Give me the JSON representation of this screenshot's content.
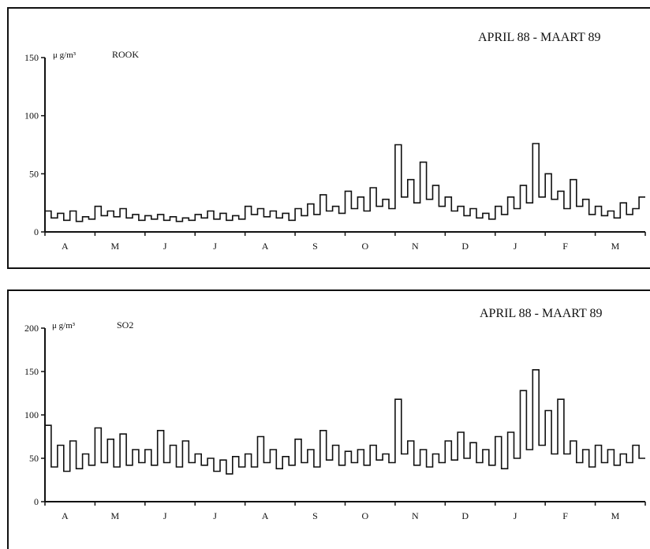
{
  "chart_data": [
    {
      "type": "line",
      "period_label": "APRIL 88 - MAART 89",
      "unit": "μ g/m³",
      "series_name": "ROOK",
      "yticks": [
        0,
        50,
        100,
        150
      ],
      "ylim": [
        0,
        150
      ],
      "months": [
        "A",
        "M",
        "J",
        "J",
        "A",
        "S",
        "O",
        "N",
        "D",
        "J",
        "F",
        "M"
      ],
      "points_per_month": 8,
      "values": [
        18,
        12,
        16,
        10,
        18,
        9,
        13,
        11,
        22,
        14,
        18,
        13,
        20,
        12,
        15,
        10,
        14,
        11,
        15,
        10,
        13,
        9,
        12,
        10,
        15,
        12,
        18,
        11,
        16,
        10,
        14,
        11,
        22,
        15,
        20,
        13,
        18,
        12,
        16,
        10,
        20,
        14,
        24,
        15,
        32,
        18,
        22,
        16,
        35,
        20,
        30,
        18,
        38,
        22,
        28,
        20,
        75,
        30,
        45,
        25,
        60,
        28,
        40,
        22,
        30,
        18,
        22,
        14,
        20,
        12,
        16,
        11,
        22,
        15,
        30,
        20,
        40,
        25,
        76,
        30,
        50,
        28,
        35,
        20,
        45,
        22,
        28,
        15,
        22,
        14,
        18,
        12,
        25,
        15,
        20,
        30
      ]
    },
    {
      "type": "line",
      "period_label": "APRIL 88 - MAART 89",
      "unit": "μ g/m³",
      "series_name": "SO2",
      "yticks": [
        0,
        50,
        100,
        150,
        200
      ],
      "ylim": [
        0,
        200
      ],
      "months": [
        "A",
        "M",
        "J",
        "J",
        "A",
        "S",
        "O",
        "N",
        "D",
        "J",
        "F",
        "M"
      ],
      "points_per_month": 8,
      "values": [
        88,
        40,
        65,
        35,
        70,
        38,
        55,
        42,
        85,
        45,
        72,
        40,
        78,
        42,
        60,
        45,
        60,
        42,
        82,
        45,
        65,
        40,
        70,
        45,
        55,
        42,
        50,
        35,
        48,
        32,
        52,
        40,
        55,
        40,
        75,
        45,
        60,
        38,
        52,
        42,
        72,
        45,
        60,
        40,
        82,
        48,
        65,
        42,
        58,
        45,
        60,
        42,
        65,
        48,
        55,
        45,
        118,
        55,
        70,
        42,
        60,
        40,
        55,
        45,
        70,
        48,
        80,
        50,
        68,
        45,
        60,
        42,
        75,
        38,
        80,
        50,
        128,
        60,
        152,
        65,
        105,
        55,
        118,
        55,
        70,
        45,
        60,
        40,
        65,
        45,
        60,
        42,
        55,
        45,
        65,
        50
      ]
    }
  ]
}
